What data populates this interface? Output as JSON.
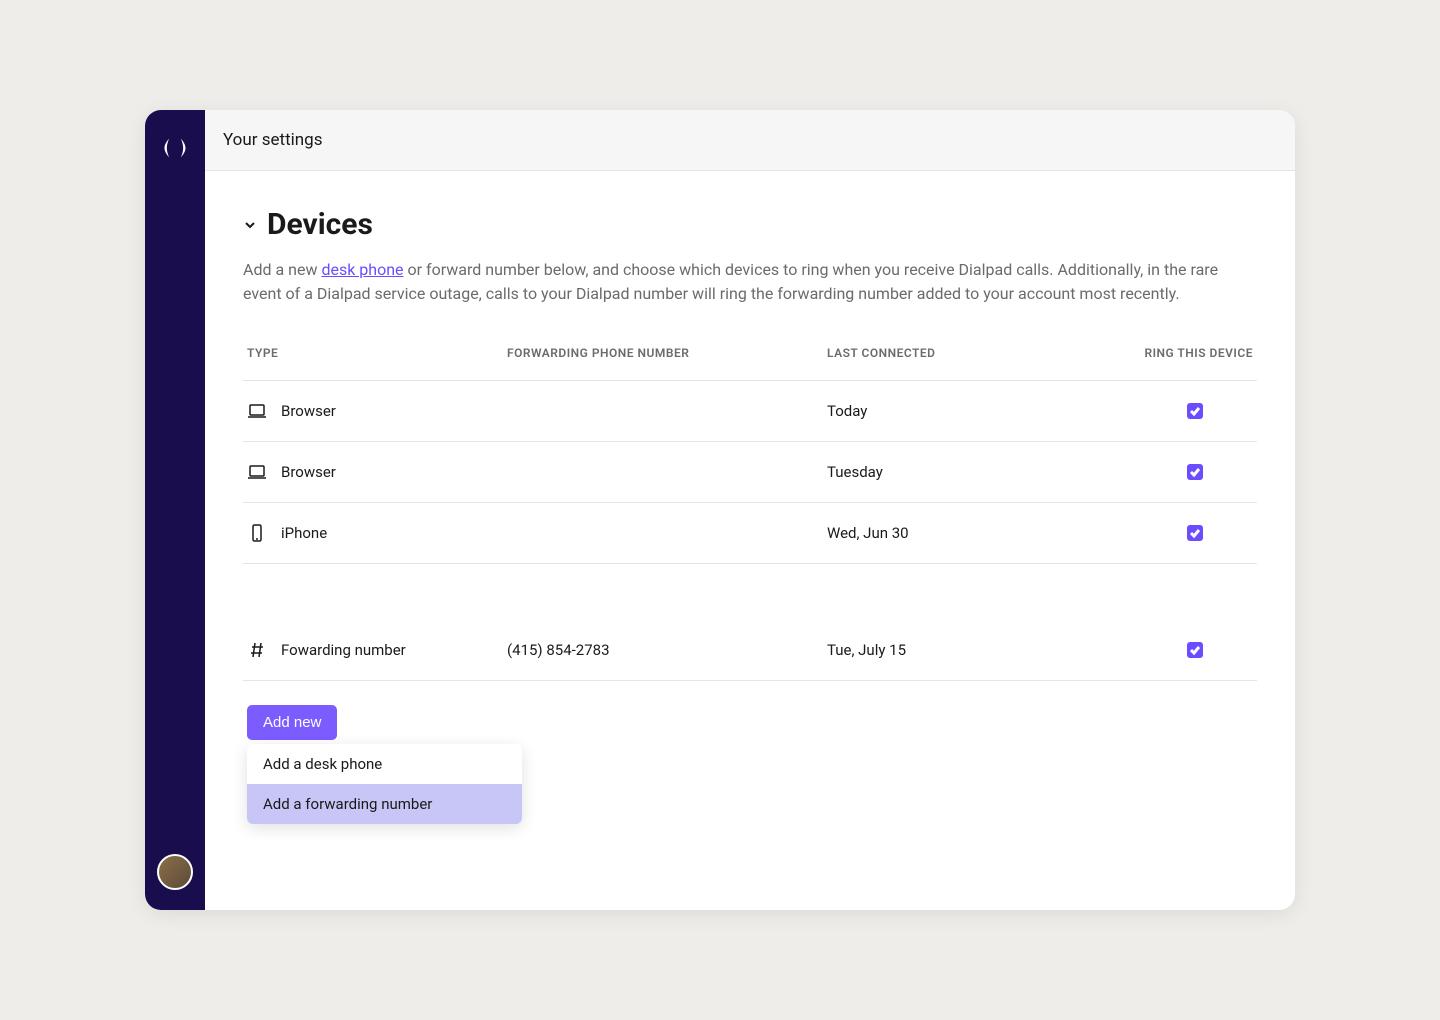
{
  "header": {
    "title": "Your settings"
  },
  "section": {
    "title": "Devices",
    "description_before_link": "Add a new ",
    "description_link": "desk phone",
    "description_after_link": " or forward number below, and choose which devices to ring when you receive Dialpad calls. Additionally, in the rare event of a Dialpad service outage, calls to your Dialpad number will ring the forwarding number added to your account most recently."
  },
  "table": {
    "headers": {
      "type": "TYPE",
      "forwarding": "FORWARDING PHONE NUMBER",
      "last_connected": "LAST CONNECTED",
      "ring": "RING THIS DEVICE"
    },
    "rows": [
      {
        "icon": "laptop",
        "type": "Browser",
        "forwarding": "",
        "last_connected": "Today",
        "ring": true
      },
      {
        "icon": "laptop",
        "type": "Browser",
        "forwarding": "",
        "last_connected": "Tuesday",
        "ring": true
      },
      {
        "icon": "phone",
        "type": "iPhone",
        "forwarding": "",
        "last_connected": "Wed, Jun 30",
        "ring": true
      },
      {
        "icon": "hash",
        "type": "Fowarding number",
        "forwarding": "(415) 854-2783",
        "last_connected": "Tue, July 15",
        "ring": true,
        "spaced": true
      }
    ]
  },
  "add_button": {
    "label": "Add new"
  },
  "dropdown": {
    "items": [
      {
        "label": "Add a desk phone",
        "hovered": false
      },
      {
        "label": "Add a forwarding number",
        "hovered": true
      }
    ]
  },
  "colors": {
    "sidebar_bg": "#1a0d4d",
    "accent": "#6c4cff",
    "button_bg": "#7c5cff",
    "dropdown_hover": "#c8c6f7",
    "page_bg": "#efedea",
    "text_primary": "#1a1a1a",
    "text_secondary": "#6b6b6b",
    "border": "#e5e5e5"
  }
}
